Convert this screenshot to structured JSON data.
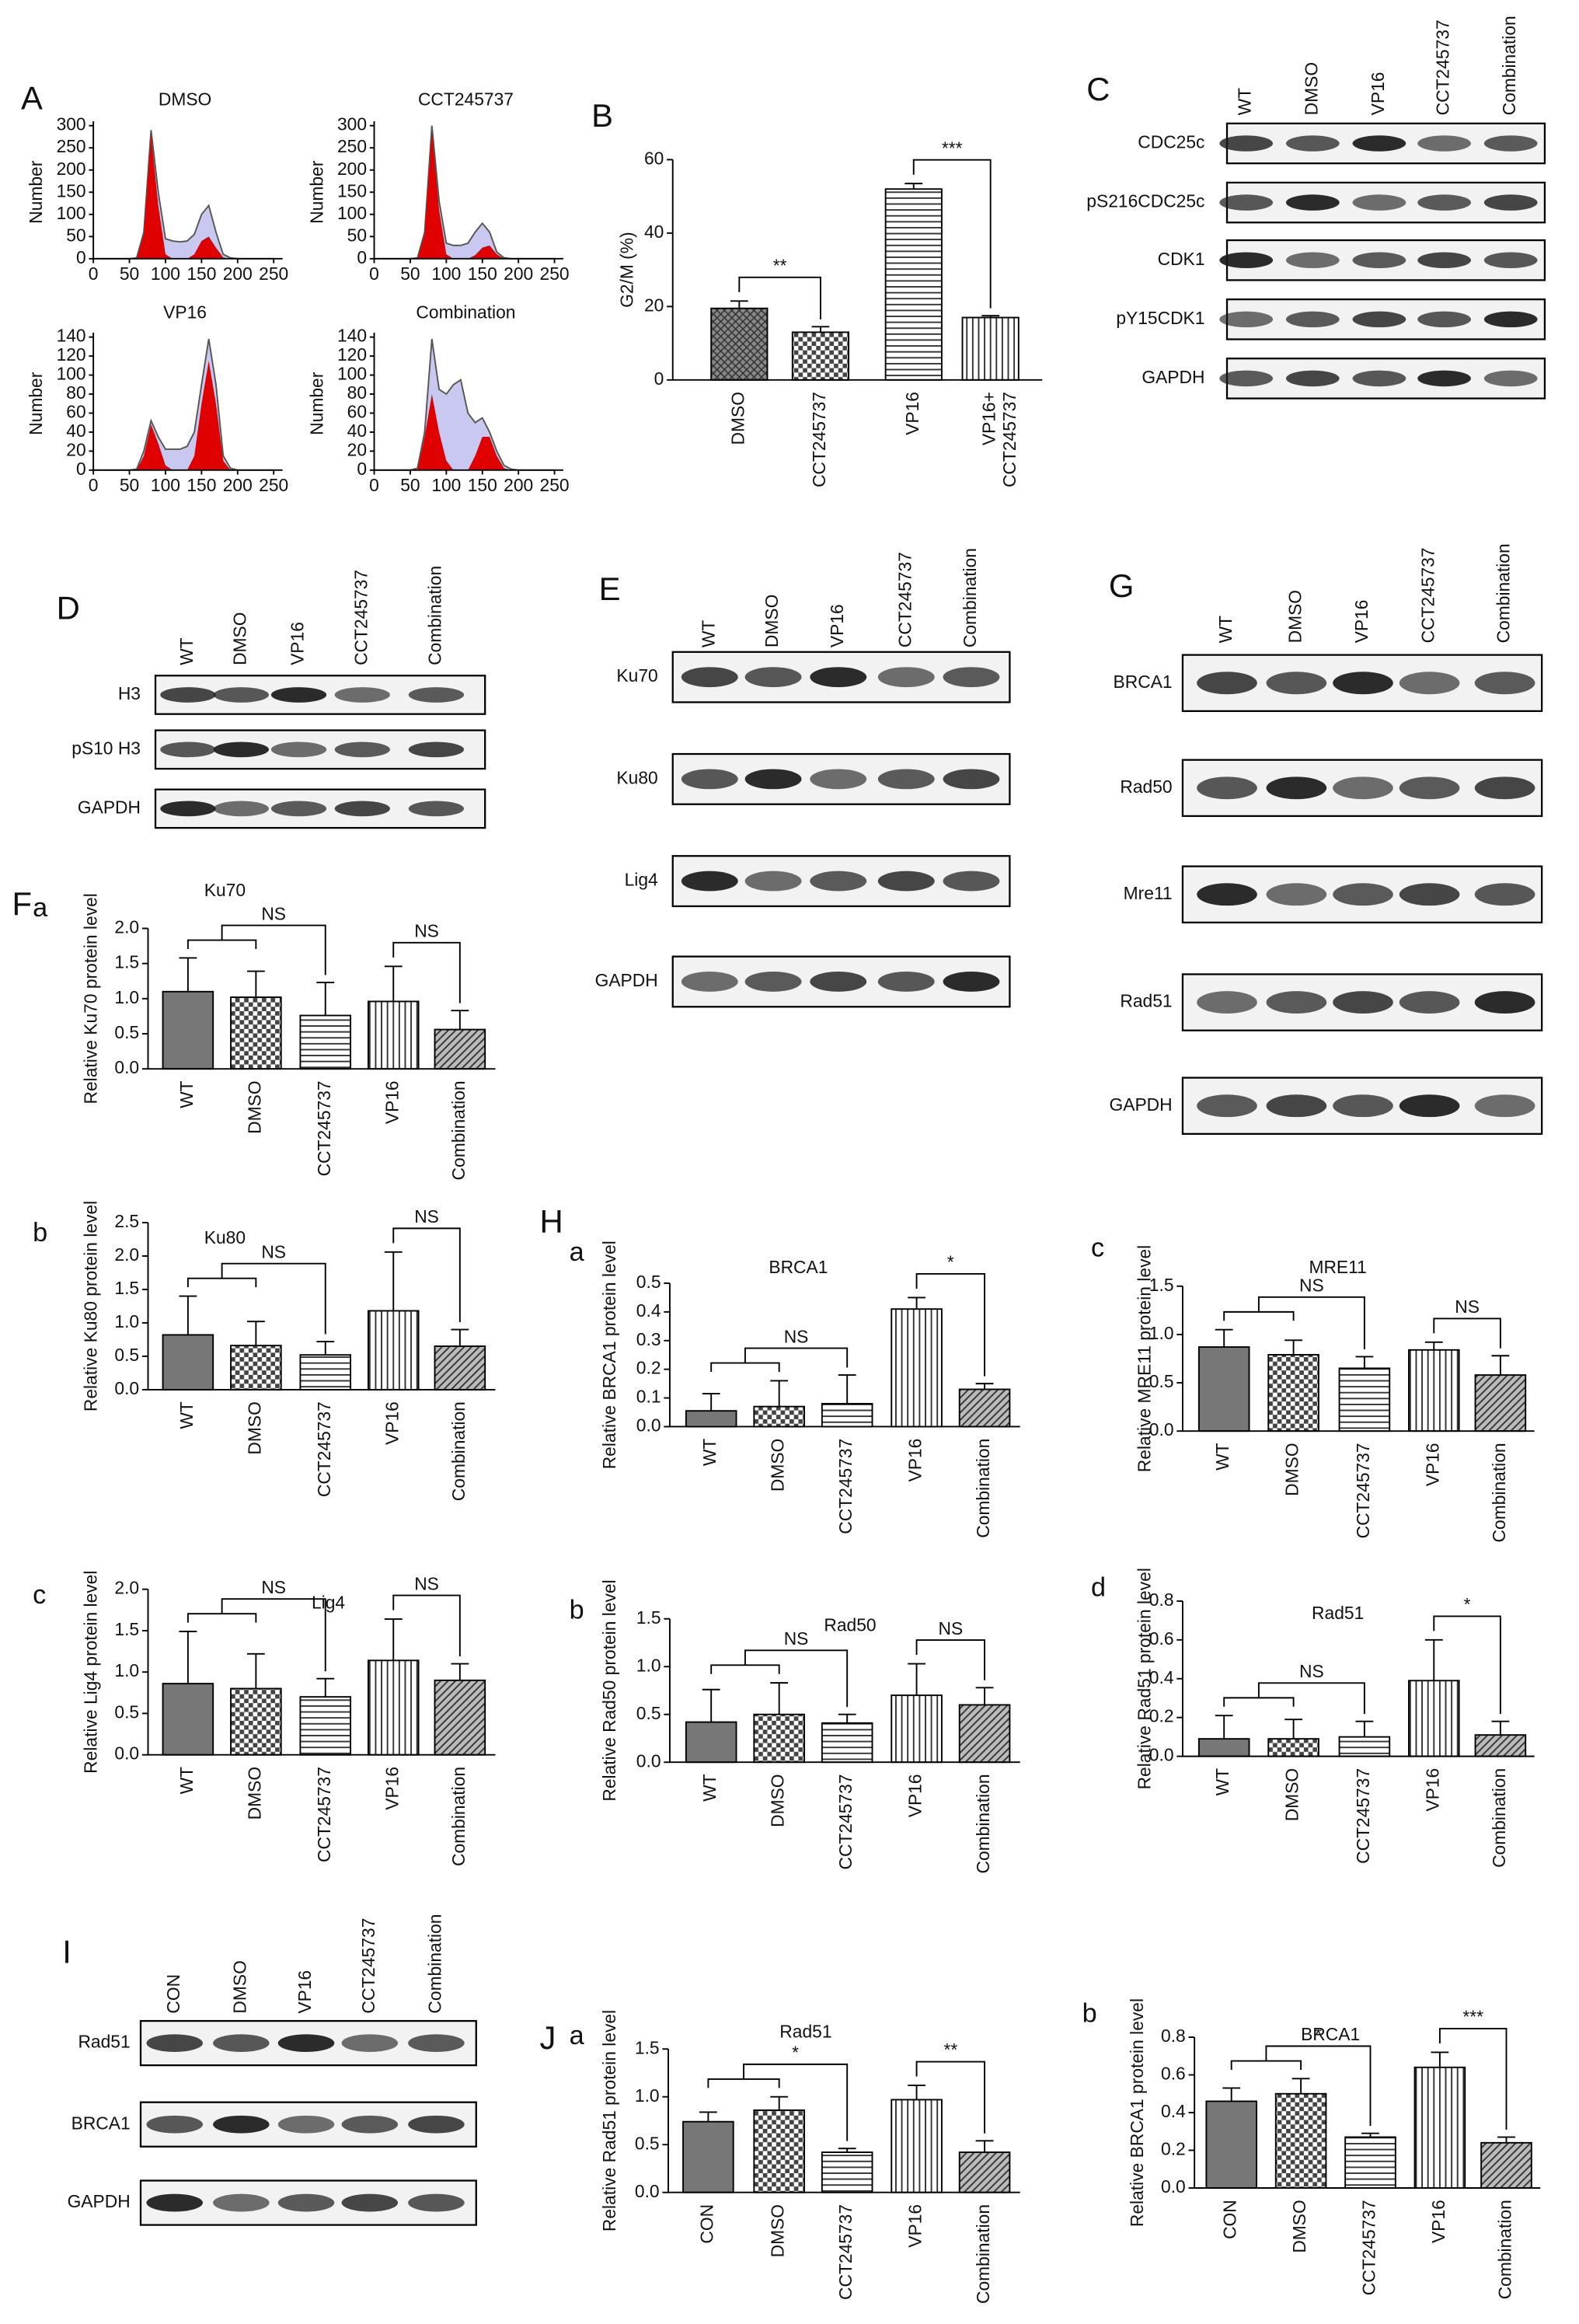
{
  "panel_labels": [
    "A",
    "F",
    "H",
    "J"
  ],
  "chart_data": [
    {
      "type": "area",
      "title": "DMSO",
      "ylabel": "Number",
      "x": [
        0,
        10,
        20,
        30,
        40,
        50,
        60,
        70,
        80,
        90,
        100,
        110,
        120,
        130,
        140,
        150,
        160,
        170,
        180,
        190,
        200,
        210,
        220,
        230,
        240,
        250
      ],
      "xlim": [
        0,
        250
      ],
      "xticks": [
        0,
        50,
        100,
        150,
        200,
        250
      ],
      "ylim": [
        0,
        300
      ],
      "yticks": [
        0,
        50,
        100,
        150,
        200,
        250,
        300
      ],
      "series": [
        {
          "color": "#555555",
          "fill": "#c8c8f0",
          "values": [
            0,
            0,
            0,
            0,
            0,
            0,
            2,
            60,
            290,
            150,
            45,
            40,
            38,
            40,
            55,
            100,
            120,
            60,
            10,
            2,
            0,
            0,
            0,
            0,
            0,
            0
          ]
        },
        {
          "color": "#e00000",
          "values": [
            0,
            0,
            0,
            0,
            0,
            0,
            0,
            55,
            280,
            120,
            10,
            0,
            0,
            0,
            10,
            40,
            50,
            25,
            3,
            0,
            0,
            0,
            0,
            0,
            0,
            0
          ]
        }
      ]
    },
    {
      "type": "area",
      "title": "CCT245737",
      "ylabel": "Number",
      "x": [
        0,
        10,
        20,
        30,
        40,
        50,
        60,
        70,
        80,
        90,
        100,
        110,
        120,
        130,
        140,
        150,
        160,
        170,
        180,
        190,
        200,
        210,
        220,
        230,
        240,
        250
      ],
      "xlim": [
        0,
        250
      ],
      "xticks": [
        0,
        50,
        100,
        150,
        200,
        250
      ],
      "ylim": [
        0,
        300
      ],
      "yticks": [
        0,
        50,
        100,
        150,
        200,
        250,
        300
      ],
      "series": [
        {
          "color": "#555555",
          "fill": "#c8c8f0",
          "values": [
            0,
            0,
            0,
            0,
            0,
            0,
            2,
            60,
            300,
            130,
            35,
            30,
            30,
            35,
            60,
            80,
            60,
            15,
            2,
            0,
            0,
            0,
            0,
            0,
            0,
            0
          ]
        },
        {
          "color": "#e00000",
          "values": [
            0,
            0,
            0,
            0,
            0,
            0,
            0,
            55,
            290,
            110,
            10,
            0,
            0,
            0,
            8,
            25,
            30,
            10,
            0,
            0,
            0,
            0,
            0,
            0,
            0,
            0
          ]
        }
      ]
    },
    {
      "type": "area",
      "title": "VP16",
      "ylabel": "Number",
      "x": [
        0,
        10,
        20,
        30,
        40,
        50,
        60,
        70,
        80,
        90,
        100,
        110,
        120,
        130,
        140,
        150,
        160,
        170,
        180,
        190,
        200,
        210,
        220,
        230,
        240,
        250
      ],
      "xlim": [
        0,
        250
      ],
      "xticks": [
        0,
        50,
        100,
        150,
        200,
        250
      ],
      "ylim": [
        0,
        140
      ],
      "yticks": [
        0,
        20,
        40,
        60,
        80,
        100,
        120,
        140
      ],
      "series": [
        {
          "color": "#555555",
          "fill": "#c8c8f0",
          "values": [
            0,
            0,
            0,
            0,
            0,
            0,
            1,
            20,
            52,
            35,
            22,
            22,
            22,
            25,
            40,
            90,
            138,
            90,
            15,
            2,
            0,
            0,
            0,
            0,
            0,
            0
          ]
        },
        {
          "color": "#e00000",
          "values": [
            0,
            0,
            0,
            0,
            0,
            0,
            0,
            15,
            48,
            28,
            5,
            0,
            0,
            0,
            15,
            70,
            115,
            70,
            10,
            0,
            0,
            0,
            0,
            0,
            0,
            0
          ]
        }
      ]
    },
    {
      "type": "area",
      "title": "Combination",
      "ylabel": "Number",
      "x": [
        0,
        10,
        20,
        30,
        40,
        50,
        60,
        70,
        80,
        90,
        100,
        110,
        120,
        130,
        140,
        150,
        160,
        170,
        180,
        190,
        200,
        210,
        220,
        230,
        240,
        250
      ],
      "xlim": [
        0,
        250
      ],
      "xticks": [
        0,
        50,
        100,
        150,
        200,
        250
      ],
      "ylim": [
        0,
        140
      ],
      "yticks": [
        0,
        20,
        40,
        60,
        80,
        100,
        120,
        140
      ],
      "series": [
        {
          "color": "#555555",
          "fill": "#c8c8f0",
          "values": [
            0,
            0,
            0,
            0,
            0,
            0,
            2,
            40,
            138,
            85,
            80,
            90,
            95,
            60,
            50,
            55,
            40,
            20,
            5,
            1,
            0,
            0,
            0,
            0,
            0,
            0
          ]
        },
        {
          "color": "#e00000",
          "values": [
            0,
            0,
            0,
            0,
            0,
            0,
            0,
            35,
            80,
            40,
            10,
            0,
            0,
            0,
            15,
            35,
            35,
            15,
            2,
            0,
            0,
            0,
            0,
            0,
            0,
            0
          ]
        }
      ]
    },
    {
      "type": "bar",
      "label": "B",
      "ylabel": "G2/M (%)",
      "categories": [
        "DMSO",
        "CCT245737",
        "VP16",
        "VP16+\nCCT245737"
      ],
      "values": [
        19.5,
        13,
        52,
        17
      ],
      "errors": [
        2,
        1.5,
        1.5,
        0.5
      ],
      "ylim": [
        0,
        60
      ],
      "yticks": [
        0,
        20,
        40,
        60
      ],
      "annotations": [
        "**",
        "***"
      ]
    },
    {
      "type": "bar",
      "label": "a",
      "title": "Ku70",
      "ylabel": "Relative Ku70 protein level",
      "categories": [
        "WT",
        "DMSO",
        "CCT245737",
        "VP16",
        "Combination"
      ],
      "values": [
        1.1,
        1.02,
        0.76,
        0.96,
        0.56
      ],
      "errors": [
        0.48,
        0.37,
        0.47,
        0.5,
        0.27
      ],
      "ylim": [
        0,
        2
      ],
      "yticks": [
        {
          "value": 0,
          "label": "0.0"
        },
        0.5,
        {
          "value": 1,
          "label": "1.0"
        },
        1.5,
        {
          "value": 2,
          "label": "2.0"
        }
      ],
      "annotations": [
        "NS",
        "NS"
      ]
    },
    {
      "type": "bar",
      "label": "b",
      "title": "Ku80",
      "ylabel": "Relative Ku80 protein level",
      "categories": [
        "WT",
        "DMSO",
        "CCT245737",
        "VP16",
        "Combination"
      ],
      "values": [
        0.82,
        0.66,
        0.52,
        1.18,
        0.65
      ],
      "errors": [
        0.58,
        0.36,
        0.2,
        0.88,
        0.25
      ],
      "ylim": [
        0,
        2.5
      ],
      "yticks": [
        {
          "value": 0,
          "label": "0.0"
        },
        0.5,
        {
          "value": 1,
          "label": "1.0"
        },
        1.5,
        {
          "value": 2,
          "label": "2.0"
        },
        2.5
      ],
      "annotations": [
        "NS",
        "NS"
      ]
    },
    {
      "type": "bar",
      "label": "c",
      "title": "Lig4",
      "ylabel": "Relative Lig4 protein level",
      "categories": [
        "WT",
        "DMSO",
        "CCT245737",
        "VP16",
        "Combination"
      ],
      "values": [
        0.86,
        0.8,
        0.7,
        1.14,
        0.9
      ],
      "errors": [
        0.63,
        0.42,
        0.22,
        0.5,
        0.2
      ],
      "ylim": [
        0,
        2
      ],
      "yticks": [
        {
          "value": 0,
          "label": "0.0"
        },
        0.5,
        {
          "value": 1,
          "label": "1.0"
        },
        1.5,
        {
          "value": 2,
          "label": "2.0"
        }
      ],
      "annotations": [
        "NS",
        "NS"
      ]
    },
    {
      "type": "bar",
      "label": "a",
      "title": "BRCA1",
      "ylabel": "Relative BRCA1 protein level",
      "categories": [
        "WT",
        "DMSO",
        "CCT245737",
        "VP16",
        "Combination"
      ],
      "values": [
        0.055,
        0.07,
        0.08,
        0.41,
        0.13
      ],
      "errors": [
        0.06,
        0.09,
        0.1,
        0.04,
        0.02
      ],
      "ylim": [
        0,
        0.5
      ],
      "yticks": [
        {
          "value": 0,
          "label": "0.0"
        },
        0.1,
        0.2,
        0.3,
        0.4,
        0.5
      ],
      "annotations": [
        "NS",
        "*"
      ]
    },
    {
      "type": "bar",
      "label": "b",
      "title": "Rad50",
      "ylabel": "Relative Rad50 protein level",
      "categories": [
        "WT",
        "DMSO",
        "CCT245737",
        "VP16",
        "Combination"
      ],
      "values": [
        0.42,
        0.5,
        0.41,
        0.7,
        0.6
      ],
      "errors": [
        0.34,
        0.33,
        0.09,
        0.33,
        0.18
      ],
      "ylim": [
        0,
        1.5
      ],
      "yticks": [
        {
          "value": 0,
          "label": "0.0"
        },
        0.5,
        {
          "value": 1,
          "label": "1.0"
        },
        1.5
      ],
      "annotations": [
        "NS",
        "NS"
      ]
    },
    {
      "type": "bar",
      "label": "c",
      "title": "MRE11",
      "ylabel": "Relative MRE11 protein level",
      "categories": [
        "WT",
        "DMSO",
        "CCT245737",
        "VP16",
        "Combination"
      ],
      "values": [
        0.87,
        0.79,
        0.65,
        0.84,
        0.58
      ],
      "errors": [
        0.18,
        0.15,
        0.12,
        0.08,
        0.2
      ],
      "ylim": [
        0,
        1.5
      ],
      "yticks": [
        {
          "value": 0,
          "label": "0.0"
        },
        0.5,
        {
          "value": 1,
          "label": "1.0"
        },
        1.5
      ],
      "annotations": [
        "NS",
        "NS"
      ]
    },
    {
      "type": "bar",
      "label": "d",
      "title": "Rad51",
      "ylabel": "Relative Rad51 protein level",
      "categories": [
        "WT",
        "DMSO",
        "CCT245737",
        "VP16",
        "Combination"
      ],
      "values": [
        0.09,
        0.09,
        0.1,
        0.39,
        0.11
      ],
      "errors": [
        0.12,
        0.1,
        0.08,
        0.21,
        0.07
      ],
      "ylim": [
        0,
        0.8
      ],
      "yticks": [
        {
          "value": 0,
          "label": "0.0"
        },
        0.2,
        0.4,
        0.6,
        0.8
      ],
      "annotations": [
        "NS",
        "*"
      ]
    },
    {
      "type": "bar",
      "label": "a",
      "title": "Rad51",
      "ylabel": "Relative Rad51 protein level",
      "categories": [
        "CON",
        "DMSO",
        "CCT245737",
        "VP16",
        "Combination"
      ],
      "values": [
        0.74,
        0.86,
        0.42,
        0.97,
        0.42
      ],
      "errors": [
        0.1,
        0.14,
        0.04,
        0.15,
        0.12
      ],
      "ylim": [
        0,
        1.5
      ],
      "yticks": [
        {
          "value": 0,
          "label": "0.0"
        },
        0.5,
        {
          "value": 1,
          "label": "1.0"
        },
        1.5
      ],
      "annotations": [
        "*",
        "**"
      ]
    },
    {
      "type": "bar",
      "label": "b",
      "title": "BRCA1",
      "ylabel": "Relative BRCA1 protein level",
      "categories": [
        "CON",
        "DMSO",
        "CCT245737",
        "VP16",
        "Combination"
      ],
      "values": [
        0.46,
        0.5,
        0.27,
        0.64,
        0.24
      ],
      "errors": [
        0.07,
        0.08,
        0.02,
        0.08,
        0.03
      ],
      "ylim": [
        0,
        0.8
      ],
      "yticks": [
        {
          "value": 0,
          "label": "0.0"
        },
        0.2,
        0.4,
        0.6,
        0.8
      ],
      "annotations": [
        "*",
        "***"
      ]
    }
  ],
  "blots": [
    {
      "label": "C",
      "lanes": [
        "WT",
        "DMSO",
        "VP16",
        "CCT245737",
        "Combination"
      ],
      "rows": [
        "CDC25c",
        "pS216CDC25c",
        "CDK1",
        "pY15CDK1",
        "GAPDH"
      ]
    },
    {
      "label": "D",
      "lanes": [
        "WT",
        "DMSO",
        "VP16",
        "CCT245737",
        "Combination"
      ],
      "rows": [
        "H3",
        "pS10 H3",
        "GAPDH"
      ]
    },
    {
      "label": "E",
      "lanes": [
        "WT",
        "DMSO",
        "VP16",
        "CCT245737",
        "Combination"
      ],
      "rows": [
        "Ku70",
        "Ku80",
        "Lig4",
        "GAPDH"
      ]
    },
    {
      "label": "G",
      "lanes": [
        "WT",
        "DMSO",
        "VP16",
        "CCT245737",
        "Combination"
      ],
      "rows": [
        "BRCA1",
        "Rad50",
        "Mre11",
        "Rad51",
        "GAPDH"
      ]
    },
    {
      "label": "I",
      "lanes": [
        "CON",
        "DMSO",
        "VP16",
        "CCT245737",
        "Combination"
      ],
      "rows": [
        "Rad51",
        "BRCA1",
        "GAPDH"
      ]
    }
  ]
}
